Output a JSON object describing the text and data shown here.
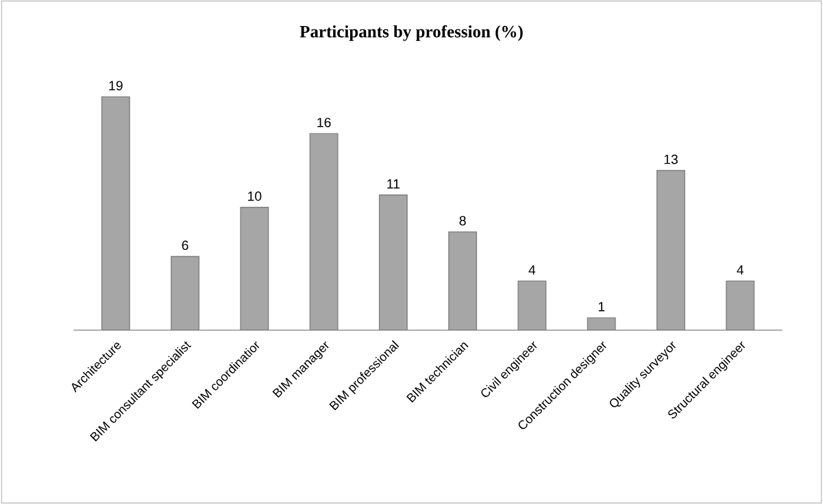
{
  "chart_data": {
    "type": "bar",
    "title": "Participants by profession (%)",
    "categories": [
      "Architecture",
      "BIM consultant specialist",
      "BIM coordinatior",
      "BIM manager",
      "BIM professional",
      "BIM technician",
      "Civil engineer",
      "Construction designer",
      "Quality surveyor",
      "Structural engineer"
    ],
    "values": [
      19,
      6,
      10,
      16,
      11,
      8,
      4,
      1,
      13,
      4
    ],
    "color": "#a6a6a6",
    "data_labels": true,
    "grid": false,
    "legend": false
  }
}
